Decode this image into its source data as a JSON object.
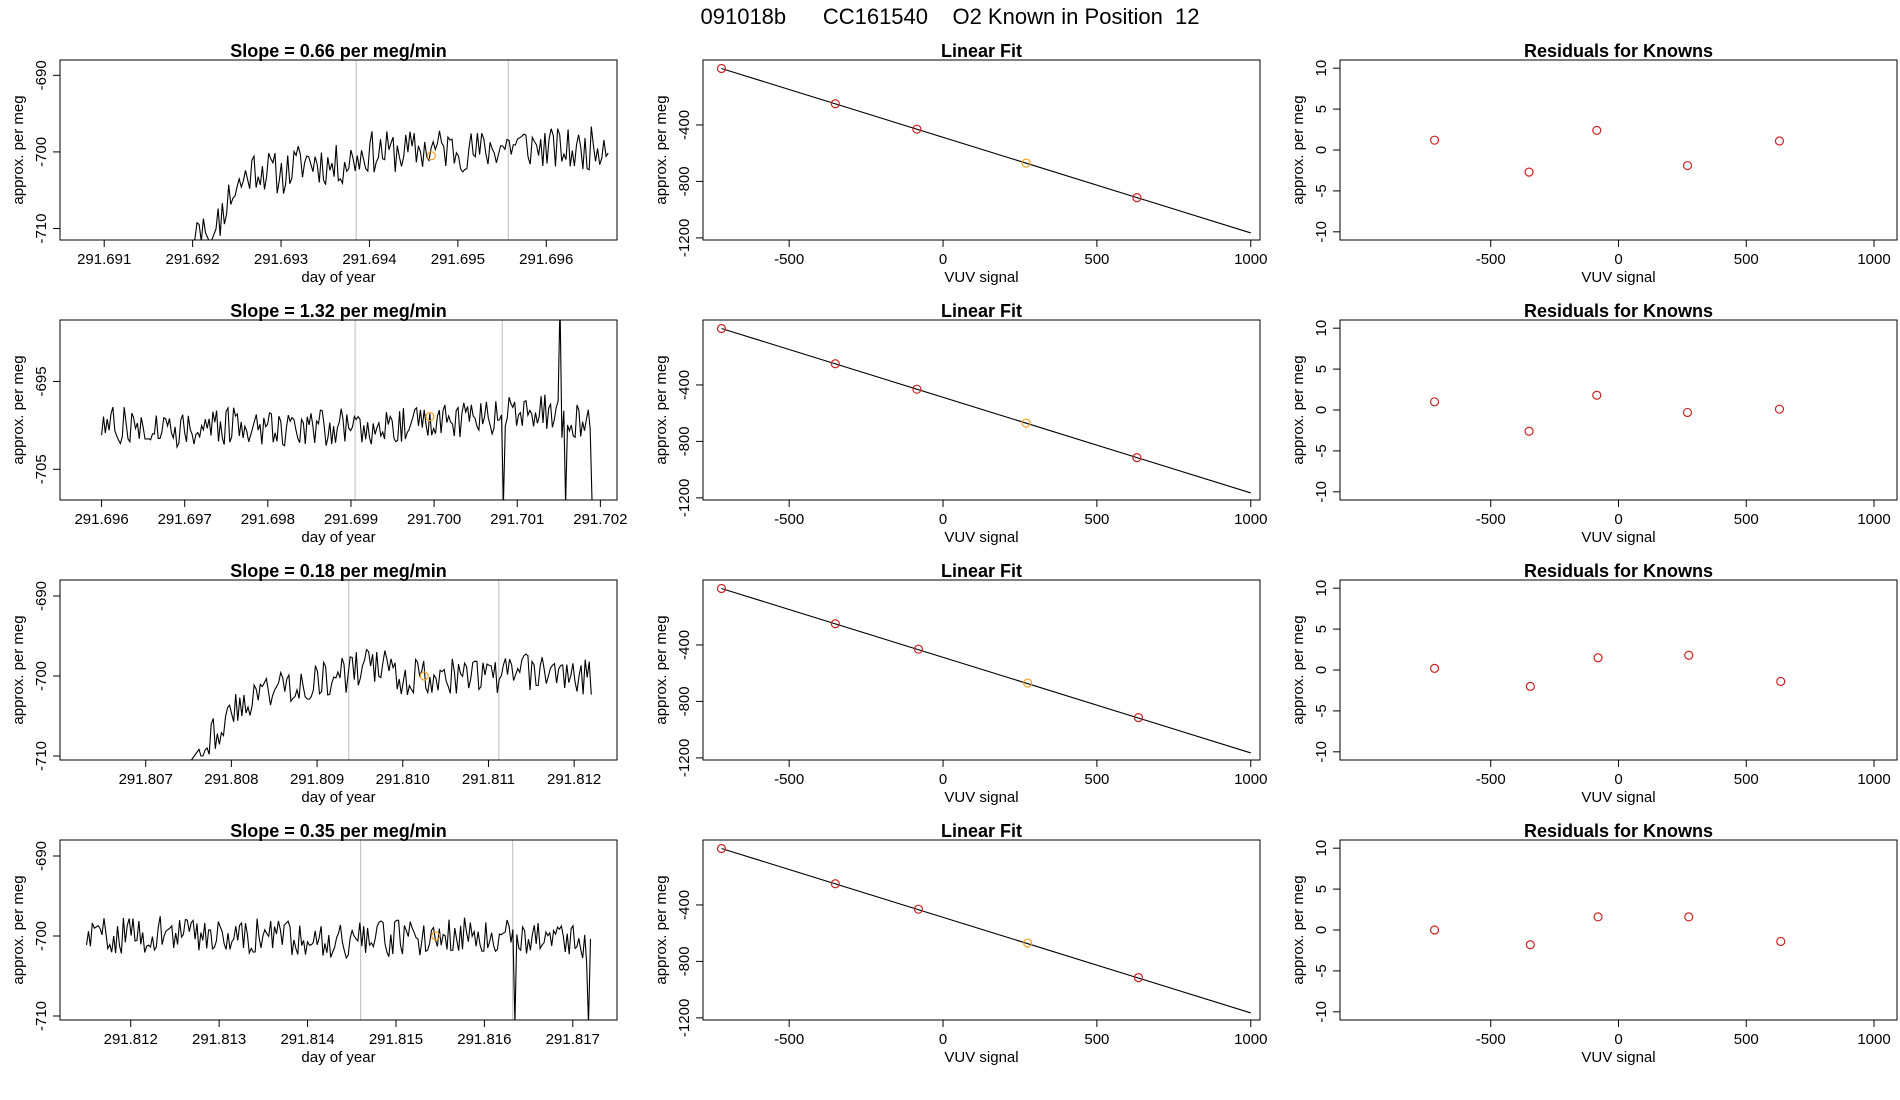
{
  "figure_title": "091018b      CC161540    O2 Known in Position  12",
  "colors": {
    "line": "#000000",
    "known_point": "#cc2222",
    "sample_point": "#f0a020",
    "marker_vline": "#c8c8c8"
  },
  "chart_data": [
    {
      "type": "line",
      "panel": "time-series",
      "row": 1,
      "title": "Slope =  0.66  per meg/min",
      "xlabel": "day of year",
      "ylabel": "approx. per meg",
      "xlim": [
        291.6905,
        291.6968
      ],
      "ylim": [
        -711.5,
        -688
      ],
      "xticks": [
        291.691,
        291.692,
        291.693,
        291.694,
        291.695,
        291.696
      ],
      "xtick_labels": [
        "291.691",
        "291.692",
        "291.693",
        "291.694",
        "291.695",
        "291.696"
      ],
      "yticks": [
        -690,
        -700,
        -710
      ],
      "ytick_labels": [
        "-690",
        "-700",
        "-710"
      ],
      "x_start": 291.6905,
      "x_end": 291.6967,
      "vlines": [
        291.69385,
        291.69557
      ],
      "sample_point": {
        "x": 291.6947,
        "y": -700.5
      },
      "series_levels": [
        [
          291.6905,
          -712
        ],
        [
          291.692,
          -712
        ],
        [
          291.69205,
          -708
        ],
        [
          291.6922,
          -712
        ],
        [
          291.6924,
          -706
        ],
        [
          291.6927,
          -702
        ],
        [
          291.693,
          -703
        ],
        [
          291.6933,
          -701
        ],
        [
          291.6936,
          -702
        ],
        [
          291.694,
          -700
        ],
        [
          291.6944,
          -700
        ],
        [
          291.6948,
          -699.5
        ],
        [
          291.6952,
          -700
        ],
        [
          291.6956,
          -699
        ],
        [
          291.696,
          -699.5
        ],
        [
          291.6964,
          -700
        ],
        [
          291.6967,
          -698.5
        ]
      ],
      "noise_amp": 2.8,
      "seed": 11
    },
    {
      "type": "line",
      "panel": "time-series",
      "row": 2,
      "title": "Slope =  1.32  per meg/min",
      "xlabel": "day of year",
      "ylabel": "approx. per meg",
      "xlim": [
        291.6955,
        291.7022
      ],
      "ylim": [
        -708.5,
        -688
      ],
      "xticks": [
        291.696,
        291.697,
        291.698,
        291.699,
        291.7,
        291.701,
        291.702
      ],
      "xtick_labels": [
        "291.696",
        "291.697",
        "291.698",
        "291.699",
        "291.700",
        "291.701",
        "291.702"
      ],
      "yticks": [
        -695,
        -705
      ],
      "ytick_labels": [
        "-695",
        "-705"
      ],
      "x_start": 291.696,
      "x_end": 291.7019,
      "vlines": [
        291.69905,
        291.70082
      ],
      "sample_point": {
        "x": 291.69995,
        "y": -699
      },
      "series_levels": [
        [
          291.696,
          -700
        ],
        [
          291.697,
          -700.3
        ],
        [
          291.698,
          -700.1
        ],
        [
          291.699,
          -700.2
        ],
        [
          291.7,
          -699.5
        ],
        [
          291.7008,
          -699
        ],
        [
          291.7013,
          -698.5
        ],
        [
          291.7018,
          -700
        ]
      ],
      "noise_amp": 2.2,
      "seed": 27,
      "spikes": [
        {
          "x": 291.70084,
          "y": -709
        },
        {
          "x": 291.70152,
          "y": -686
        },
        {
          "x": 291.70158,
          "y": -709
        },
        {
          "x": 291.7019,
          "y": -709
        }
      ]
    },
    {
      "type": "line",
      "panel": "time-series",
      "row": 3,
      "title": "Slope =  0.18  per meg/min",
      "xlabel": "day of year",
      "ylabel": "approx. per meg",
      "xlim": [
        291.806,
        291.8125
      ],
      "ylim": [
        -710.5,
        -688
      ],
      "xticks": [
        291.807,
        291.808,
        291.809,
        291.81,
        291.811,
        291.812
      ],
      "xtick_labels": [
        "291.807",
        "291.808",
        "291.809",
        "291.810",
        "291.811",
        "291.812"
      ],
      "yticks": [
        -690,
        -700,
        -710
      ],
      "ytick_labels": [
        "-690",
        "-700",
        "-710"
      ],
      "x_start": 291.806,
      "x_end": 291.8122,
      "vlines": [
        291.80937,
        291.81112
      ],
      "sample_point": {
        "x": 291.81025,
        "y": -700
      },
      "series_levels": [
        [
          291.806,
          -711
        ],
        [
          291.8075,
          -711
        ],
        [
          291.8077,
          -708
        ],
        [
          291.808,
          -705
        ],
        [
          291.8083,
          -702
        ],
        [
          291.8087,
          -701
        ],
        [
          291.8092,
          -700.5
        ],
        [
          291.8096,
          -698.5
        ],
        [
          291.81,
          -700
        ],
        [
          291.8105,
          -700
        ],
        [
          291.811,
          -700
        ],
        [
          291.8115,
          -699.5
        ],
        [
          291.8122,
          -700
        ]
      ],
      "noise_amp": 2.4,
      "seed": 43
    },
    {
      "type": "line",
      "panel": "time-series",
      "row": 4,
      "title": "Slope =  0.35  per meg/min",
      "xlabel": "day of year",
      "ylabel": "approx. per meg",
      "xlim": [
        291.8112,
        291.8175
      ],
      "ylim": [
        -710.5,
        -688
      ],
      "xticks": [
        291.812,
        291.813,
        291.814,
        291.815,
        291.816,
        291.817
      ],
      "xtick_labels": [
        "291.812",
        "291.813",
        "291.814",
        "291.815",
        "291.816",
        "291.817"
      ],
      "yticks": [
        -690,
        -700,
        -710
      ],
      "ytick_labels": [
        "-690",
        "-700",
        "-710"
      ],
      "x_start": 291.8115,
      "x_end": 291.8172,
      "vlines": [
        291.8146,
        291.81632
      ],
      "sample_point": {
        "x": 291.81545,
        "y": -700
      },
      "series_levels": [
        [
          291.8115,
          -700
        ],
        [
          291.8125,
          -699.7
        ],
        [
          291.8135,
          -700
        ],
        [
          291.8145,
          -700.5
        ],
        [
          291.8155,
          -700
        ],
        [
          291.8163,
          -699.8
        ],
        [
          291.817,
          -700.5
        ],
        [
          291.8172,
          -702
        ]
      ],
      "noise_amp": 2.3,
      "seed": 59,
      "spikes": [
        {
          "x": 291.81634,
          "y": -711
        },
        {
          "x": 291.81718,
          "y": -711
        }
      ]
    },
    {
      "type": "scatter",
      "panel": "linear-fit",
      "row": 1,
      "title": "Linear Fit",
      "xlabel": "VUV signal",
      "ylabel": "approx. per meg",
      "xlim": [
        -780,
        1030
      ],
      "ylim": [
        -1215,
        60
      ],
      "xticks": [
        -500,
        0,
        500,
        1000
      ],
      "xtick_labels": [
        "-500",
        "0",
        "500",
        "1000"
      ],
      "yticks": [
        -400,
        -800,
        -1200
      ],
      "ytick_labels": [
        "-400",
        "-800",
        "-1200"
      ],
      "fit_line": {
        "x": [
          -720,
          1000
        ],
        "y": [
          0,
          -1165
        ]
      },
      "known_points": [
        {
          "x": -720,
          "y": 0
        },
        {
          "x": -350,
          "y": -250
        },
        {
          "x": -85,
          "y": -430
        },
        {
          "x": 630,
          "y": -915
        }
      ],
      "sample_points": [
        {
          "x": 270,
          "y": -670
        }
      ]
    },
    {
      "type": "scatter",
      "panel": "linear-fit",
      "row": 2,
      "title": "Linear Fit",
      "xlabel": "VUV signal",
      "ylabel": "approx. per meg",
      "xlim": [
        -780,
        1030
      ],
      "ylim": [
        -1215,
        60
      ],
      "xticks": [
        -500,
        0,
        500,
        1000
      ],
      "xtick_labels": [
        "-500",
        "0",
        "500",
        "1000"
      ],
      "yticks": [
        -400,
        -800,
        -1200
      ],
      "ytick_labels": [
        "-400",
        "-800",
        "-1200"
      ],
      "fit_line": {
        "x": [
          -720,
          1000
        ],
        "y": [
          0,
          -1165
        ]
      },
      "known_points": [
        {
          "x": -720,
          "y": 0
        },
        {
          "x": -350,
          "y": -250
        },
        {
          "x": -85,
          "y": -430
        },
        {
          "x": 630,
          "y": -915
        }
      ],
      "sample_points": [
        {
          "x": 270,
          "y": -670
        }
      ]
    },
    {
      "type": "scatter",
      "panel": "linear-fit",
      "row": 3,
      "title": "Linear Fit",
      "xlabel": "VUV signal",
      "ylabel": "approx. per meg",
      "xlim": [
        -780,
        1030
      ],
      "ylim": [
        -1215,
        60
      ],
      "xticks": [
        -500,
        0,
        500,
        1000
      ],
      "xtick_labels": [
        "-500",
        "0",
        "500",
        "1000"
      ],
      "yticks": [
        -400,
        -800,
        -1200
      ],
      "ytick_labels": [
        "-400",
        "-800",
        "-1200"
      ],
      "fit_line": {
        "x": [
          -720,
          1000
        ],
        "y": [
          0,
          -1165
        ]
      },
      "known_points": [
        {
          "x": -720,
          "y": 0
        },
        {
          "x": -350,
          "y": -250
        },
        {
          "x": -80,
          "y": -430
        },
        {
          "x": 635,
          "y": -915
        }
      ],
      "sample_points": [
        {
          "x": 275,
          "y": -670
        }
      ]
    },
    {
      "type": "scatter",
      "panel": "linear-fit",
      "row": 4,
      "title": "Linear Fit",
      "xlabel": "VUV signal",
      "ylabel": "approx. per meg",
      "xlim": [
        -780,
        1030
      ],
      "ylim": [
        -1215,
        60
      ],
      "xticks": [
        -500,
        0,
        500,
        1000
      ],
      "xtick_labels": [
        "-500",
        "0",
        "500",
        "1000"
      ],
      "yticks": [
        -400,
        -800,
        -1200
      ],
      "ytick_labels": [
        "-400",
        "-800",
        "-1200"
      ],
      "fit_line": {
        "x": [
          -720,
          1000
        ],
        "y": [
          0,
          -1165
        ]
      },
      "known_points": [
        {
          "x": -720,
          "y": 0
        },
        {
          "x": -350,
          "y": -250
        },
        {
          "x": -80,
          "y": -430
        },
        {
          "x": 635,
          "y": -915
        }
      ],
      "sample_points": [
        {
          "x": 275,
          "y": -670
        }
      ]
    },
    {
      "type": "scatter",
      "panel": "residuals",
      "row": 1,
      "title": "Residuals for Knowns",
      "xlabel": "VUV signal",
      "ylabel": "approx. per meg",
      "xlim": [
        -1090,
        1090
      ],
      "ylim": [
        -11,
        11
      ],
      "xticks": [
        -500,
        0,
        500,
        1000
      ],
      "xtick_labels": [
        "-500",
        "0",
        "500",
        "1000"
      ],
      "yticks": [
        10,
        5,
        0,
        -5,
        -10
      ],
      "ytick_labels": [
        "10",
        "5",
        "0",
        "-5",
        "-10"
      ],
      "points": [
        {
          "x": -720,
          "y": 1.2
        },
        {
          "x": -350,
          "y": -2.7
        },
        {
          "x": -85,
          "y": 2.4
        },
        {
          "x": 270,
          "y": -1.9
        },
        {
          "x": 630,
          "y": 1.1
        }
      ]
    },
    {
      "type": "scatter",
      "panel": "residuals",
      "row": 2,
      "title": "Residuals for Knowns",
      "xlabel": "VUV signal",
      "ylabel": "approx. per meg",
      "xlim": [
        -1090,
        1090
      ],
      "ylim": [
        -11,
        11
      ],
      "xticks": [
        -500,
        0,
        500,
        1000
      ],
      "xtick_labels": [
        "-500",
        "0",
        "500",
        "1000"
      ],
      "yticks": [
        10,
        5,
        0,
        -5,
        -10
      ],
      "ytick_labels": [
        "10",
        "5",
        "0",
        "-5",
        "-10"
      ],
      "points": [
        {
          "x": -720,
          "y": 1.0
        },
        {
          "x": -350,
          "y": -2.6
        },
        {
          "x": -85,
          "y": 1.8
        },
        {
          "x": 270,
          "y": -0.3
        },
        {
          "x": 630,
          "y": 0.1
        }
      ]
    },
    {
      "type": "scatter",
      "panel": "residuals",
      "row": 3,
      "title": "Residuals for Knowns",
      "xlabel": "VUV signal",
      "ylabel": "approx. per meg",
      "xlim": [
        -1090,
        1090
      ],
      "ylim": [
        -11,
        11
      ],
      "xticks": [
        -500,
        0,
        500,
        1000
      ],
      "xtick_labels": [
        "-500",
        "0",
        "500",
        "1000"
      ],
      "yticks": [
        10,
        5,
        0,
        -5,
        -10
      ],
      "ytick_labels": [
        "10",
        "5",
        "0",
        "-5",
        "-10"
      ],
      "points": [
        {
          "x": -720,
          "y": 0.2
        },
        {
          "x": -345,
          "y": -2.0
        },
        {
          "x": -80,
          "y": 1.5
        },
        {
          "x": 275,
          "y": 1.8
        },
        {
          "x": 635,
          "y": -1.4
        }
      ]
    },
    {
      "type": "scatter",
      "panel": "residuals",
      "row": 4,
      "title": "Residuals for Knowns",
      "xlabel": "VUV signal",
      "ylabel": "approx. per meg",
      "xlim": [
        -1090,
        1090
      ],
      "ylim": [
        -11,
        11
      ],
      "xticks": [
        -500,
        0,
        500,
        1000
      ],
      "xtick_labels": [
        "-500",
        "0",
        "500",
        "1000"
      ],
      "yticks": [
        10,
        5,
        0,
        -5,
        -10
      ],
      "ytick_labels": [
        "10",
        "5",
        "0",
        "-5",
        "-10"
      ],
      "points": [
        {
          "x": -720,
          "y": 0.0
        },
        {
          "x": -345,
          "y": -1.8
        },
        {
          "x": -80,
          "y": 1.6
        },
        {
          "x": 275,
          "y": 1.6
        },
        {
          "x": 635,
          "y": -1.4
        }
      ]
    }
  ]
}
